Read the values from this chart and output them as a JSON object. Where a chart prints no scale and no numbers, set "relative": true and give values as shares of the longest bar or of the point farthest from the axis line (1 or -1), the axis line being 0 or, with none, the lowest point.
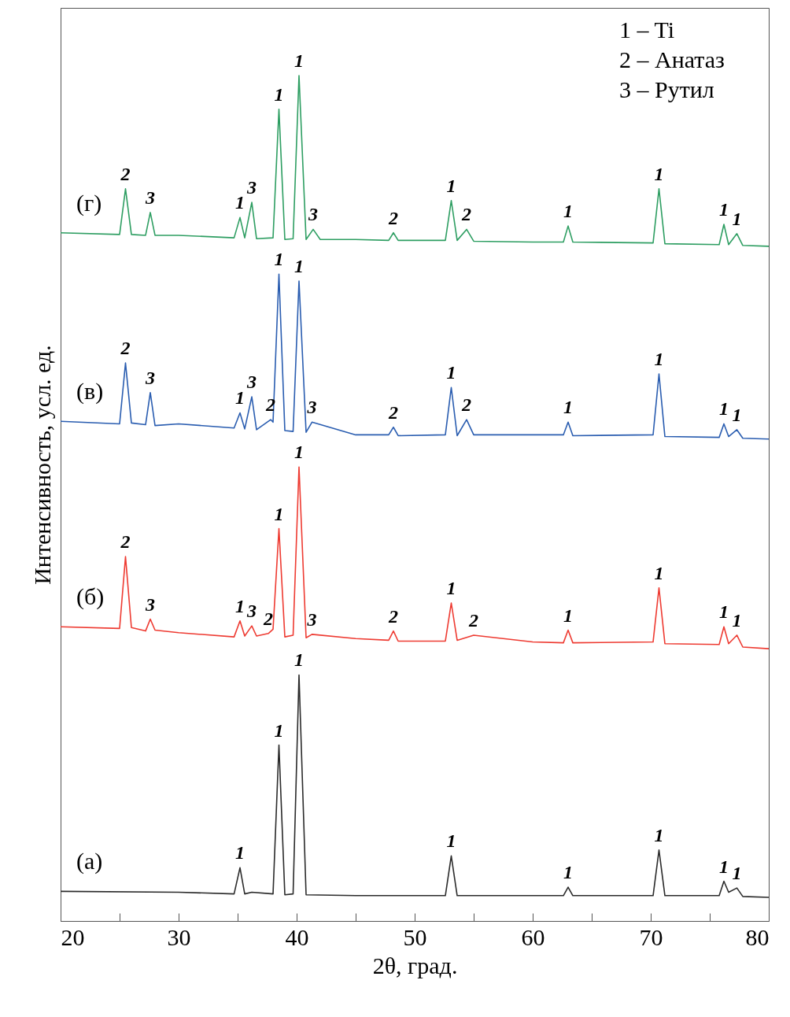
{
  "chart_data": {
    "type": "line",
    "relative": true,
    "xlabel": "2θ, град.",
    "ylabel": "Интенсивность, усл. ед.",
    "xlim": [
      20,
      80
    ],
    "xticks": [
      20,
      {
        "value": 25,
        "label": null
      },
      30,
      {
        "value": 35,
        "label": null
      },
      40,
      {
        "value": 45,
        "label": null
      },
      50,
      {
        "value": 55,
        "label": null
      },
      60,
      {
        "value": 65,
        "label": null
      },
      70,
      {
        "value": 75,
        "label": null
      },
      80
    ],
    "grid": false,
    "marker": "none",
    "line_style": "solid",
    "series": [
      {
        "name": "(а)",
        "color": "#2b2b2b",
        "x": [
          20,
          30,
          34.7,
          35.2,
          35.6,
          36.2,
          38.0,
          38.5,
          39.0,
          39.7,
          40.2,
          40.8,
          45,
          52.6,
          53.1,
          53.6,
          62.6,
          63.0,
          63.4,
          70.2,
          70.7,
          71.2,
          75.8,
          76.2,
          76.6,
          77.3,
          77.8,
          80
        ],
        "values": [
          0.035,
          0.034,
          0.032,
          0.063,
          0.032,
          0.034,
          0.032,
          0.208,
          0.031,
          0.032,
          0.291,
          0.031,
          0.03,
          0.03,
          0.077,
          0.03,
          0.03,
          0.04,
          0.03,
          0.03,
          0.084,
          0.03,
          0.03,
          0.047,
          0.034,
          0.039,
          0.029,
          0.028
        ]
      },
      {
        "name": "(б)",
        "color": "#ee3b32",
        "x": [
          20,
          25.0,
          25.5,
          26.0,
          27.2,
          27.6,
          28.0,
          30,
          34.7,
          35.2,
          35.6,
          36.2,
          36.6,
          37.6,
          38.0,
          38.5,
          39.0,
          39.7,
          40.2,
          40.8,
          41.3,
          45,
          47.8,
          48.2,
          48.6,
          52.6,
          53.1,
          53.6,
          55.0,
          60,
          62.6,
          63.0,
          63.4,
          70.2,
          70.7,
          71.2,
          75.8,
          76.2,
          76.6,
          77.3,
          77.8,
          80
        ],
        "values": [
          0.348,
          0.346,
          0.431,
          0.347,
          0.343,
          0.357,
          0.344,
          0.341,
          0.336,
          0.355,
          0.337,
          0.349,
          0.337,
          0.34,
          0.345,
          0.464,
          0.336,
          0.338,
          0.537,
          0.335,
          0.339,
          0.334,
          0.332,
          0.343,
          0.331,
          0.331,
          0.376,
          0.332,
          0.338,
          0.33,
          0.329,
          0.344,
          0.329,
          0.33,
          0.394,
          0.328,
          0.327,
          0.348,
          0.328,
          0.338,
          0.324,
          0.322
        ]
      },
      {
        "name": "(в)",
        "color": "#2a5db0",
        "x": [
          20,
          25.0,
          25.5,
          26.0,
          27.2,
          27.6,
          28.0,
          30,
          34.7,
          35.2,
          35.6,
          36.2,
          36.6,
          37.8,
          38.0,
          38.5,
          39.0,
          39.7,
          40.2,
          40.8,
          41.3,
          45,
          47.8,
          48.2,
          48.6,
          52.6,
          53.1,
          53.6,
          54.4,
          55,
          60,
          62.6,
          63.0,
          63.4,
          70.2,
          70.7,
          71.2,
          75.8,
          76.2,
          76.6,
          77.3,
          77.8,
          80
        ],
        "values": [
          0.591,
          0.588,
          0.66,
          0.589,
          0.587,
          0.625,
          0.586,
          0.588,
          0.583,
          0.601,
          0.582,
          0.62,
          0.581,
          0.593,
          0.59,
          0.765,
          0.58,
          0.579,
          0.757,
          0.578,
          0.59,
          0.575,
          0.575,
          0.584,
          0.574,
          0.575,
          0.631,
          0.574,
          0.593,
          0.575,
          0.575,
          0.575,
          0.59,
          0.574,
          0.575,
          0.647,
          0.573,
          0.572,
          0.588,
          0.573,
          0.581,
          0.571,
          0.57
        ]
      },
      {
        "name": "(г)",
        "color": "#2e9e62",
        "x": [
          20,
          25.0,
          25.5,
          26.0,
          27.2,
          27.6,
          28.0,
          30,
          34.7,
          35.2,
          35.6,
          36.2,
          36.6,
          38.0,
          38.5,
          39.0,
          39.7,
          40.2,
          40.8,
          41.4,
          42,
          45,
          47.8,
          48.2,
          48.6,
          52.6,
          53.1,
          53.6,
          54.4,
          55,
          60,
          62.6,
          63.0,
          63.4,
          70.2,
          70.7,
          71.2,
          75.8,
          76.2,
          76.6,
          77.3,
          77.8,
          80
        ],
        "values": [
          0.814,
          0.812,
          0.866,
          0.812,
          0.811,
          0.838,
          0.811,
          0.811,
          0.808,
          0.832,
          0.808,
          0.85,
          0.807,
          0.808,
          0.96,
          0.806,
          0.807,
          1,
          0.806,
          0.818,
          0.806,
          0.806,
          0.805,
          0.814,
          0.805,
          0.805,
          0.852,
          0.805,
          0.818,
          0.804,
          0.803,
          0.803,
          0.822,
          0.803,
          0.802,
          0.866,
          0.801,
          0.8,
          0.824,
          0.8,
          0.813,
          0.799,
          0.798
        ]
      }
    ],
    "annotations": [
      "1 – Ti",
      "2 – Анатаз",
      "3 – Рутил",
      {
        "text": "1",
        "x": 35.2,
        "y": 0.063
      },
      {
        "text": "1",
        "x": 38.5,
        "y": 0.208
      },
      {
        "text": "1",
        "x": 40.2,
        "y": 0.291
      },
      {
        "text": "1",
        "x": 53.1,
        "y": 0.077
      },
      {
        "text": "1",
        "x": 63.0,
        "y": 0.04
      },
      {
        "text": "1",
        "x": 70.7,
        "y": 0.084
      },
      {
        "text": "1",
        "x": 76.2,
        "y": 0.047
      },
      {
        "text": "1",
        "x": 77.3,
        "y": 0.039
      },
      {
        "text": "2",
        "x": 25.5,
        "y": 0.431
      },
      {
        "text": "3",
        "x": 27.6,
        "y": 0.357
      },
      {
        "text": "1",
        "x": 35.2,
        "y": 0.355
      },
      {
        "text": "3",
        "x": 36.2,
        "y": 0.349
      },
      {
        "text": "2",
        "x": 37.6,
        "y": 0.34
      },
      {
        "text": "1",
        "x": 38.5,
        "y": 0.464
      },
      {
        "text": "1",
        "x": 40.2,
        "y": 0.537
      },
      {
        "text": "3",
        "x": 41.3,
        "y": 0.339
      },
      {
        "text": "2",
        "x": 48.2,
        "y": 0.343
      },
      {
        "text": "1",
        "x": 53.1,
        "y": 0.376
      },
      {
        "text": "2",
        "x": 55.0,
        "y": 0.338
      },
      {
        "text": "1",
        "x": 63.0,
        "y": 0.344
      },
      {
        "text": "1",
        "x": 70.7,
        "y": 0.394
      },
      {
        "text": "1",
        "x": 76.2,
        "y": 0.348
      },
      {
        "text": "1",
        "x": 77.3,
        "y": 0.338
      },
      {
        "text": "2",
        "x": 25.5,
        "y": 0.66
      },
      {
        "text": "3",
        "x": 27.6,
        "y": 0.625
      },
      {
        "text": "1",
        "x": 35.2,
        "y": 0.601
      },
      {
        "text": "3",
        "x": 36.2,
        "y": 0.62
      },
      {
        "text": "2",
        "x": 37.8,
        "y": 0.593
      },
      {
        "text": "1",
        "x": 38.5,
        "y": 0.765
      },
      {
        "text": "1",
        "x": 40.2,
        "y": 0.757
      },
      {
        "text": "3",
        "x": 41.3,
        "y": 0.59
      },
      {
        "text": "2",
        "x": 48.2,
        "y": 0.584
      },
      {
        "text": "1",
        "x": 53.1,
        "y": 0.631
      },
      {
        "text": "2",
        "x": 54.4,
        "y": 0.593
      },
      {
        "text": "1",
        "x": 63.0,
        "y": 0.59
      },
      {
        "text": "1",
        "x": 70.7,
        "y": 0.647
      },
      {
        "text": "1",
        "x": 76.2,
        "y": 0.588
      },
      {
        "text": "1",
        "x": 77.3,
        "y": 0.581
      },
      {
        "text": "2",
        "x": 25.5,
        "y": 0.866
      },
      {
        "text": "3",
        "x": 27.6,
        "y": 0.838
      },
      {
        "text": "1",
        "x": 35.2,
        "y": 0.832
      },
      {
        "text": "3",
        "x": 36.2,
        "y": 0.85
      },
      {
        "text": "1",
        "x": 38.5,
        "y": 0.96
      },
      {
        "text": "1",
        "x": 40.2,
        "y": 1
      },
      {
        "text": "3",
        "x": 41.4,
        "y": 0.818
      },
      {
        "text": "2",
        "x": 48.2,
        "y": 0.814
      },
      {
        "text": "1",
        "x": 53.1,
        "y": 0.852
      },
      {
        "text": "2",
        "x": 54.4,
        "y": 0.818
      },
      {
        "text": "1",
        "x": 63.0,
        "y": 0.822
      },
      {
        "text": "1",
        "x": 70.7,
        "y": 0.866
      },
      {
        "text": "1",
        "x": 76.2,
        "y": 0.824
      },
      {
        "text": "1",
        "x": 77.3,
        "y": 0.813
      }
    ]
  }
}
